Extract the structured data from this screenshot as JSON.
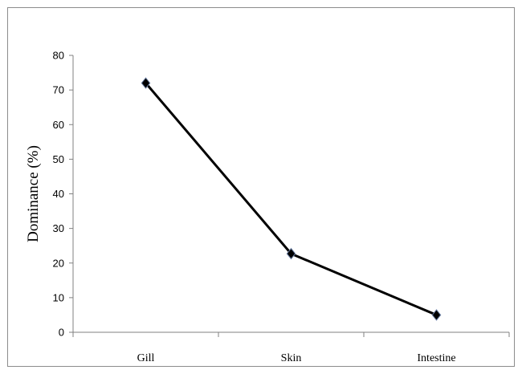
{
  "chart_data": {
    "type": "line",
    "categories": [
      "Gill",
      "Skin",
      "Intestine"
    ],
    "series": [
      {
        "values": [
          72,
          22.7,
          5
        ]
      }
    ],
    "ylabel": "Dominance (%)",
    "xlabel": "",
    "ylim": [
      0,
      80
    ],
    "yticks": [
      0,
      10,
      20,
      30,
      40,
      50,
      60,
      70,
      80
    ],
    "grid": false,
    "legend": "none",
    "marker": "diamond",
    "line_color": "#000000"
  }
}
